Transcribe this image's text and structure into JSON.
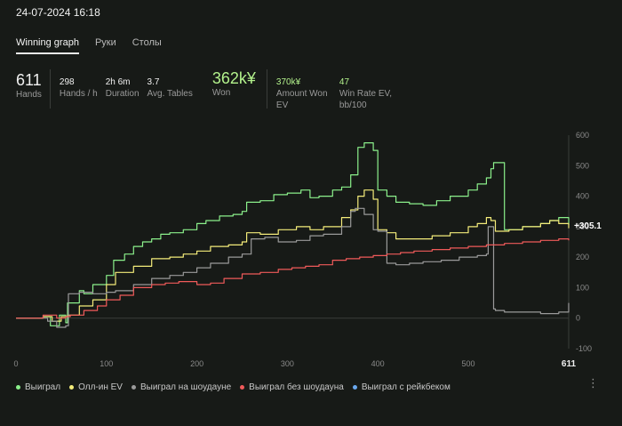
{
  "header": {
    "title": "24-07-2024 16:18"
  },
  "tabs": [
    {
      "label": "Winning graph",
      "active": true
    },
    {
      "label": "Руки",
      "active": false
    },
    {
      "label": "Столы",
      "active": false
    }
  ],
  "stats": {
    "hands": {
      "value": "611",
      "label": "Hands"
    },
    "hands_per_hour": {
      "value": "298",
      "label": "Hands / h"
    },
    "duration": {
      "value": "2h 6m",
      "label": "Duration"
    },
    "avg_tables": {
      "value": "3.7",
      "label": "Avg. Tables"
    },
    "won": {
      "value": "362k¥",
      "label": "Won"
    },
    "amount_won_ev": {
      "value": "370k¥",
      "label": "Amount Won EV"
    },
    "win_rate_ev": {
      "value": "47",
      "label": "Win Rate EV, bb/100"
    }
  },
  "colors": {
    "green": "#8bf08b",
    "yellow": "#f4ec7a",
    "gray": "#9a9a9a",
    "red": "#f05a5a",
    "blue": "#6aa8ee"
  },
  "chart_data": {
    "type": "line",
    "x_ticks": [
      "0",
      "100",
      "200",
      "300",
      "400",
      "500"
    ],
    "x_end_label": "611",
    "y_ticks": [
      "600",
      "500",
      "400",
      "300",
      "200",
      "100",
      "0",
      "-100"
    ],
    "xlim": [
      0,
      611
    ],
    "ylim": [
      -100,
      600
    ],
    "end_label": "+305.1",
    "grid": false,
    "legend_position": "bottom",
    "series": [
      {
        "name": "Выиграл",
        "color": "#8bf08b",
        "x": [
          0,
          15,
          30,
          38,
          48,
          55,
          57,
          70,
          75,
          85,
          100,
          108,
          120,
          130,
          140,
          150,
          160,
          170,
          185,
          200,
          210,
          225,
          240,
          250,
          255,
          270,
          285,
          300,
          315,
          325,
          335,
          350,
          360,
          370,
          378,
          385,
          395,
          400,
          410,
          420,
          435,
          450,
          465,
          480,
          500,
          510,
          520,
          525,
          528,
          540,
          560,
          580,
          590,
          600,
          611
        ],
        "y": [
          0,
          0,
          5,
          -25,
          10,
          -15,
          50,
          90,
          80,
          110,
          140,
          190,
          210,
          235,
          250,
          260,
          275,
          280,
          290,
          310,
          320,
          335,
          340,
          350,
          380,
          385,
          405,
          410,
          420,
          395,
          400,
          420,
          430,
          470,
          560,
          575,
          550,
          420,
          400,
          380,
          375,
          370,
          385,
          400,
          420,
          440,
          460,
          490,
          510,
          290,
          300,
          310,
          320,
          330,
          305
        ]
      },
      {
        "name": "Олл-ин EV",
        "color": "#f4ec7a",
        "x": [
          0,
          15,
          30,
          40,
          50,
          57,
          70,
          85,
          100,
          110,
          130,
          150,
          170,
          185,
          200,
          215,
          235,
          250,
          255,
          270,
          290,
          310,
          325,
          340,
          360,
          370,
          378,
          385,
          395,
          400,
          410,
          420,
          440,
          460,
          480,
          500,
          510,
          520,
          525,
          530,
          545,
          560,
          580,
          590,
          600,
          611
        ],
        "y": [
          0,
          0,
          5,
          -10,
          5,
          10,
          40,
          60,
          110,
          150,
          170,
          195,
          200,
          210,
          220,
          235,
          240,
          250,
          280,
          275,
          290,
          300,
          290,
          300,
          330,
          355,
          400,
          420,
          390,
          290,
          280,
          260,
          260,
          270,
          280,
          300,
          310,
          330,
          320,
          285,
          290,
          300,
          310,
          320,
          310,
          295
        ]
      },
      {
        "name": "Выиграл на шоудауне",
        "color": "#9a9a9a",
        "x": [
          0,
          20,
          35,
          45,
          55,
          58,
          70,
          85,
          100,
          110,
          130,
          150,
          170,
          185,
          200,
          215,
          235,
          250,
          260,
          275,
          290,
          310,
          325,
          340,
          360,
          370,
          375,
          385,
          395,
          400,
          410,
          420,
          435,
          450,
          470,
          490,
          510,
          520,
          522,
          528,
          530,
          540,
          560,
          580,
          600,
          611
        ],
        "y": [
          0,
          0,
          -10,
          -30,
          -25,
          80,
          85,
          80,
          85,
          90,
          110,
          130,
          140,
          150,
          165,
          180,
          200,
          210,
          260,
          265,
          250,
          255,
          270,
          275,
          300,
          350,
          360,
          340,
          290,
          285,
          180,
          175,
          180,
          185,
          190,
          200,
          205,
          210,
          300,
          30,
          25,
          20,
          20,
          15,
          20,
          50
        ]
      },
      {
        "name": "Выиграл без шоудауна",
        "color": "#f05a5a",
        "x": [
          0,
          15,
          30,
          45,
          55,
          60,
          75,
          90,
          100,
          115,
          130,
          150,
          165,
          180,
          200,
          215,
          230,
          250,
          270,
          290,
          305,
          320,
          335,
          350,
          365,
          380,
          395,
          410,
          425,
          440,
          460,
          480,
          500,
          520,
          540,
          560,
          580,
          600,
          611
        ],
        "y": [
          0,
          0,
          10,
          0,
          5,
          10,
          25,
          40,
          60,
          75,
          100,
          110,
          115,
          120,
          110,
          115,
          130,
          145,
          150,
          160,
          165,
          170,
          175,
          190,
          195,
          200,
          205,
          210,
          215,
          220,
          225,
          230,
          235,
          240,
          245,
          250,
          255,
          260,
          255
        ]
      },
      {
        "name": "Выиграл с рейкбеком",
        "color": "#6aa8ee",
        "x": [],
        "y": []
      }
    ]
  }
}
